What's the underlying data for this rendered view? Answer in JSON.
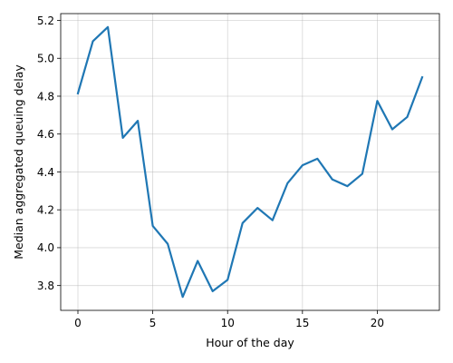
{
  "chart_data": {
    "type": "line",
    "title": "",
    "xlabel": "Hour of the day",
    "ylabel": "Median aggregated queuing delay",
    "x": [
      0,
      1,
      2,
      3,
      4,
      5,
      6,
      7,
      8,
      9,
      10,
      11,
      12,
      13,
      14,
      15,
      16,
      17,
      18,
      19,
      20,
      21,
      22,
      23
    ],
    "series": [
      {
        "values": [
          4.815,
          5.09,
          5.165,
          4.58,
          4.67,
          4.115,
          4.02,
          3.74,
          3.93,
          3.77,
          3.83,
          4.13,
          4.21,
          4.145,
          4.34,
          4.435,
          4.47,
          4.36,
          4.325,
          4.39,
          4.775,
          4.625,
          4.69,
          4.9
        ],
        "color": "#1f77b4"
      }
    ],
    "xlim": [
      -1.15,
      24.15
    ],
    "ylim": [
      3.669,
      5.236
    ],
    "xticks": [
      0,
      5,
      10,
      15,
      20
    ],
    "xtick_labels": [
      "0",
      "5",
      "10",
      "15",
      "20"
    ],
    "yticks": [
      3.8,
      4.0,
      4.2,
      4.4,
      4.6,
      4.8,
      5.0,
      5.2
    ],
    "ytick_labels": [
      "3.8",
      "4.0",
      "4.2",
      "4.4",
      "4.6",
      "4.8",
      "5.0",
      "5.2"
    ],
    "grid": true,
    "legend": false
  }
}
